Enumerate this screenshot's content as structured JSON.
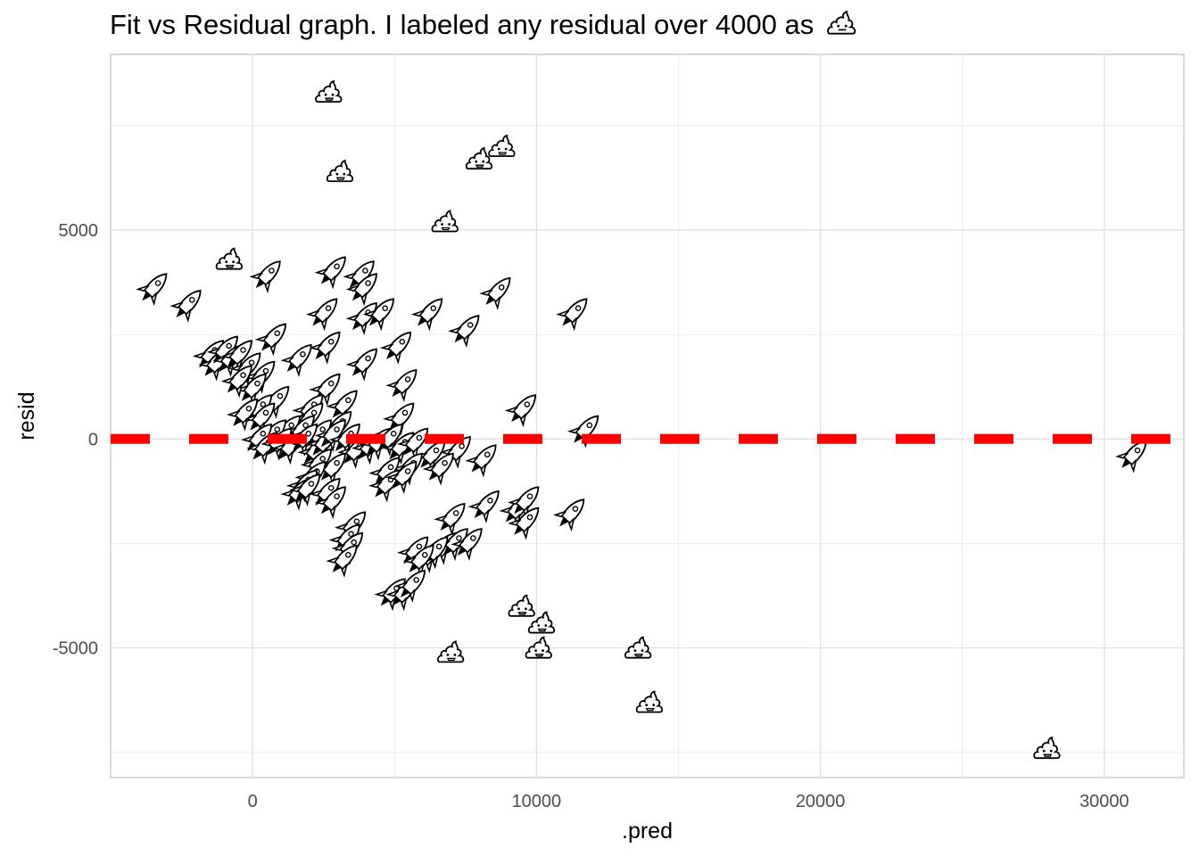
{
  "chart_data": {
    "type": "scatter",
    "title": "Fit vs Residual graph. I labeled any residual over 4000 as",
    "title_marker_icon": "poo-icon",
    "xlabel": ".pred",
    "ylabel": "resid",
    "xlim": [
      -5000,
      32800
    ],
    "ylim": [
      -8100,
      9200
    ],
    "x_ticks": [
      0,
      10000,
      20000,
      30000
    ],
    "x_tick_labels": [
      "0",
      "10000",
      "20000",
      "30000"
    ],
    "y_ticks": [
      -5000,
      0,
      5000
    ],
    "y_tick_labels": [
      "-5000",
      "0",
      "5000"
    ],
    "grid": true,
    "reference_line": {
      "y": 0,
      "style": "dashed",
      "color": "#ff0000"
    },
    "marker_rule": {
      "threshold": 4000,
      "above_threshold_icon": "poo-icon",
      "below_threshold_icon": "rocket-icon"
    },
    "series": [
      {
        "marker": "poo-icon",
        "points": [
          [
            2700,
            8300
          ],
          [
            3100,
            6400
          ],
          [
            8000,
            6700
          ],
          [
            8800,
            7000
          ],
          [
            6800,
            5200
          ],
          [
            -800,
            4300
          ],
          [
            9500,
            -4000
          ],
          [
            10200,
            -4400
          ],
          [
            10100,
            -5000
          ],
          [
            7000,
            -5100
          ],
          [
            13600,
            -5000
          ],
          [
            14000,
            -6300
          ],
          [
            28000,
            -7400
          ]
        ]
      },
      {
        "marker": "rocket-icon",
        "points": [
          [
            -3500,
            3600
          ],
          [
            -2300,
            3200
          ],
          [
            500,
            3900
          ],
          [
            2800,
            4000
          ],
          [
            3800,
            3900
          ],
          [
            3900,
            3600
          ],
          [
            2500,
            3000
          ],
          [
            3900,
            2900
          ],
          [
            4500,
            3000
          ],
          [
            6200,
            3000
          ],
          [
            8600,
            3500
          ],
          [
            11300,
            3000
          ],
          [
            7500,
            2600
          ],
          [
            700,
            2400
          ],
          [
            2600,
            2200
          ],
          [
            5100,
            2200
          ],
          [
            1600,
            1900
          ],
          [
            3900,
            1800
          ],
          [
            -1500,
            2000
          ],
          [
            -1300,
            1800
          ],
          [
            -1000,
            2100
          ],
          [
            -800,
            1900
          ],
          [
            -500,
            2000
          ],
          [
            -200,
            1700
          ],
          [
            300,
            1500
          ],
          [
            5300,
            1300
          ],
          [
            2600,
            1200
          ],
          [
            3200,
            800
          ],
          [
            2000,
            700
          ],
          [
            800,
            900
          ],
          [
            0,
            1200
          ],
          [
            -500,
            1400
          ],
          [
            200,
            700
          ],
          [
            300,
            500
          ],
          [
            -300,
            600
          ],
          [
            9500,
            700
          ],
          [
            11700,
            200
          ],
          [
            5200,
            500
          ],
          [
            2000,
            500
          ],
          [
            3000,
            300
          ],
          [
            1200,
            200
          ],
          [
            1700,
            200
          ],
          [
            2300,
            100
          ],
          [
            700,
            100
          ],
          [
            200,
            0
          ],
          [
            400,
            -200
          ],
          [
            900,
            -100
          ],
          [
            1300,
            -200
          ],
          [
            1800,
            0
          ],
          [
            2200,
            -300
          ],
          [
            2500,
            -100
          ],
          [
            2800,
            100
          ],
          [
            3300,
            0
          ],
          [
            3600,
            -300
          ],
          [
            4100,
            -200
          ],
          [
            4400,
            -100
          ],
          [
            4800,
            0
          ],
          [
            5200,
            -200
          ],
          [
            5700,
            -100
          ],
          [
            6300,
            -400
          ],
          [
            7200,
            -300
          ],
          [
            8100,
            -500
          ],
          [
            5500,
            -700
          ],
          [
            4700,
            -800
          ],
          [
            2300,
            -600
          ],
          [
            2800,
            -700
          ],
          [
            2100,
            -900
          ],
          [
            6600,
            -700
          ],
          [
            4700,
            -1100
          ],
          [
            5300,
            -900
          ],
          [
            1800,
            -1100
          ],
          [
            1600,
            -1300
          ],
          [
            1900,
            -1200
          ],
          [
            2600,
            -1300
          ],
          [
            2800,
            -1500
          ],
          [
            7000,
            -1900
          ],
          [
            8200,
            -1600
          ],
          [
            9300,
            -1700
          ],
          [
            9600,
            -1500
          ],
          [
            9600,
            -2000
          ],
          [
            11200,
            -1800
          ],
          [
            3500,
            -2100
          ],
          [
            3300,
            -2400
          ],
          [
            3400,
            -2600
          ],
          [
            3200,
            -2900
          ],
          [
            5700,
            -2700
          ],
          [
            6200,
            -2800
          ],
          [
            6700,
            -2600
          ],
          [
            7100,
            -2500
          ],
          [
            7600,
            -2500
          ],
          [
            6400,
            -2700
          ],
          [
            5900,
            -2900
          ],
          [
            4900,
            -3700
          ],
          [
            5300,
            -3700
          ],
          [
            5600,
            -3500
          ],
          [
            31000,
            -400
          ]
        ]
      }
    ]
  }
}
